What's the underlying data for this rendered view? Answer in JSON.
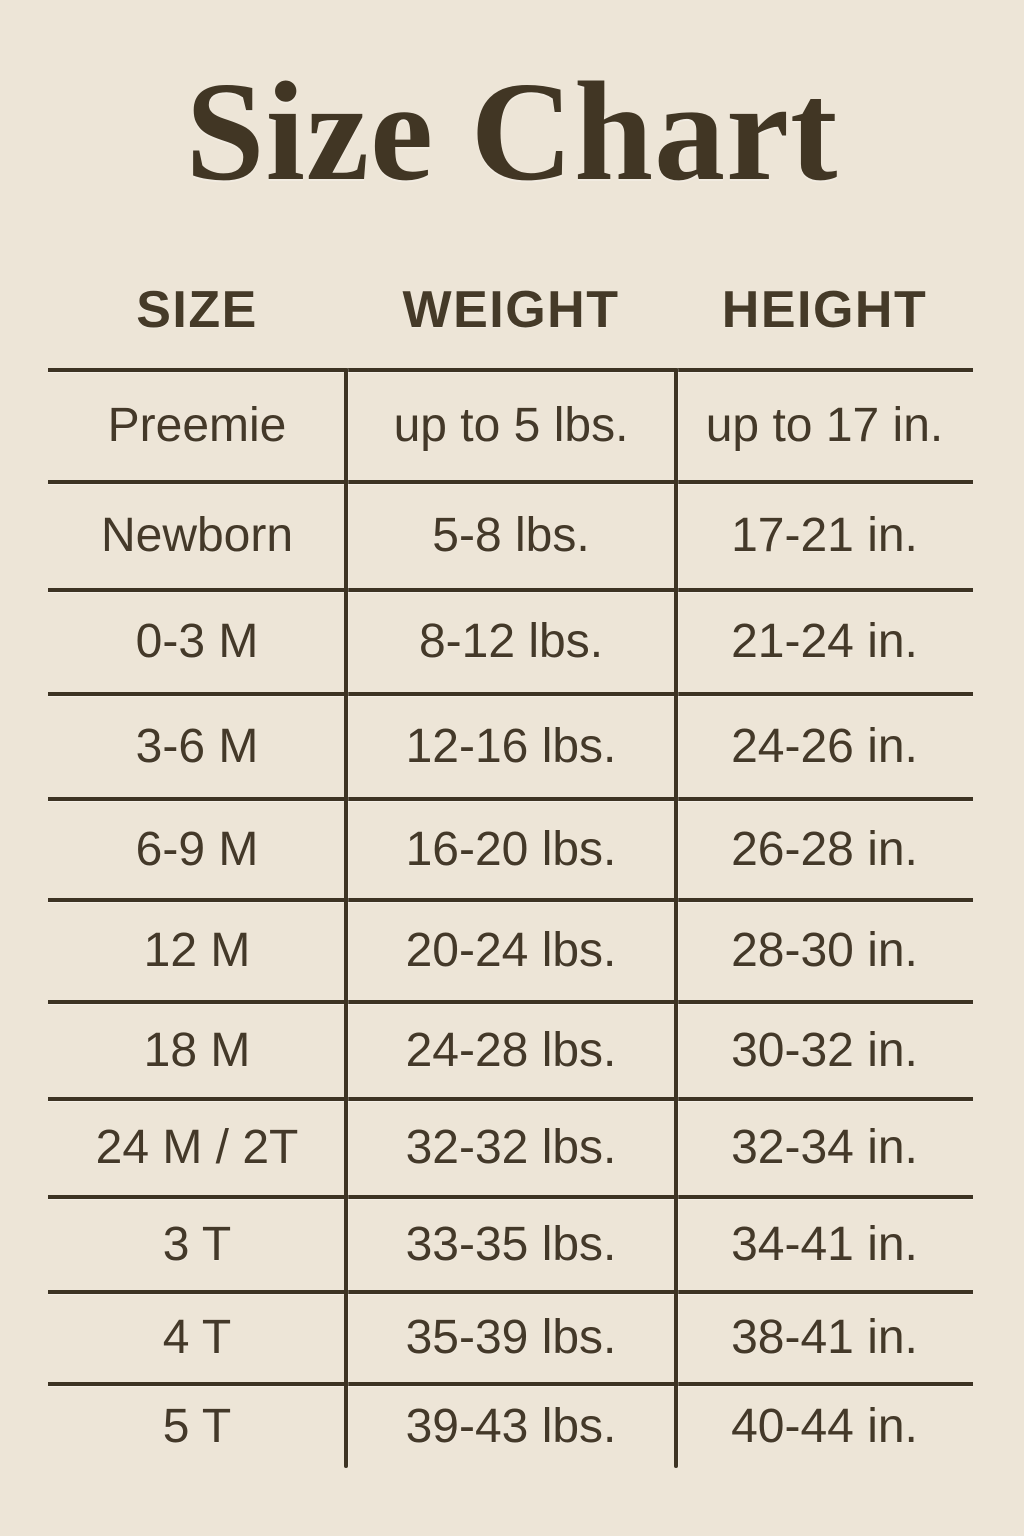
{
  "title": "Size Chart",
  "colors": {
    "background": "#EDE5D7",
    "text": "#443929",
    "line": "#3D3323"
  },
  "chart_data": {
    "type": "table",
    "title": "Size Chart",
    "columns": [
      "SIZE",
      "WEIGHT",
      "HEIGHT"
    ],
    "rows": [
      {
        "size": "Preemie",
        "weight": "up to 5 lbs.",
        "height": "up to 17 in."
      },
      {
        "size": "Newborn",
        "weight": "5-8 lbs.",
        "height": "17-21 in."
      },
      {
        "size": "0-3 M",
        "weight": "8-12 lbs.",
        "height": "21-24 in."
      },
      {
        "size": "3-6 M",
        "weight": "12-16 lbs.",
        "height": "24-26 in."
      },
      {
        "size": "6-9 M",
        "weight": "16-20 lbs.",
        "height": "26-28 in."
      },
      {
        "size": "12 M",
        "weight": "20-24 lbs.",
        "height": "28-30 in."
      },
      {
        "size": "18 M",
        "weight": "24-28 lbs.",
        "height": "30-32 in."
      },
      {
        "size": "24 M / 2T",
        "weight": "32-32 lbs.",
        "height": "32-34 in."
      },
      {
        "size": "3 T",
        "weight": "33-35 lbs.",
        "height": "34-41 in."
      },
      {
        "size": "4 T",
        "weight": "35-39 lbs.",
        "height": "38-41 in."
      },
      {
        "size": "5 T",
        "weight": "39-43 lbs.",
        "height": "40-44 in."
      }
    ],
    "layout": {
      "grid": "horizontal rules between rows, two vertical column dividers, no outer border, open bottom"
    }
  }
}
